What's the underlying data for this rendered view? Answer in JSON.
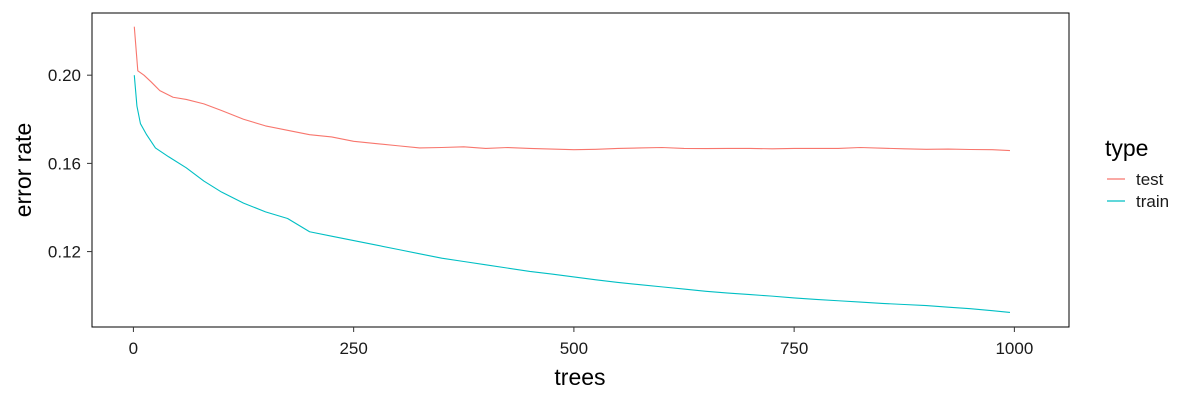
{
  "chart_data": {
    "type": "line",
    "xlabel": "trees",
    "ylabel": "error rate",
    "xlim": [
      -47,
      1062
    ],
    "ylim": [
      0.0858,
      0.2282
    ],
    "x_ticks": [
      0,
      250,
      500,
      750,
      1000
    ],
    "x_tick_labels": [
      "0",
      "250",
      "500",
      "750",
      "1000"
    ],
    "y_ticks": [
      0.12,
      0.16,
      0.2
    ],
    "y_tick_labels": [
      "0.12",
      "0.16",
      "0.20"
    ],
    "grid": false,
    "legend": {
      "title": "type",
      "placement": "right"
    },
    "series": [
      {
        "name": "test",
        "color": "#F8766D",
        "points": [
          [
            1,
            0.222
          ],
          [
            5,
            0.202
          ],
          [
            12,
            0.2
          ],
          [
            20,
            0.197
          ],
          [
            30,
            0.193
          ],
          [
            45,
            0.19
          ],
          [
            60,
            0.189
          ],
          [
            80,
            0.187
          ],
          [
            100,
            0.184
          ],
          [
            125,
            0.18
          ],
          [
            150,
            0.177
          ],
          [
            175,
            0.175
          ],
          [
            200,
            0.173
          ],
          [
            225,
            0.172
          ],
          [
            250,
            0.17
          ],
          [
            275,
            0.169
          ],
          [
            300,
            0.168
          ],
          [
            325,
            0.167
          ],
          [
            350,
            0.1672
          ],
          [
            375,
            0.1675
          ],
          [
            400,
            0.1668
          ],
          [
            425,
            0.1672
          ],
          [
            450,
            0.1668
          ],
          [
            475,
            0.1665
          ],
          [
            500,
            0.1662
          ],
          [
            525,
            0.1664
          ],
          [
            550,
            0.1668
          ],
          [
            575,
            0.167
          ],
          [
            600,
            0.1672
          ],
          [
            625,
            0.1668
          ],
          [
            650,
            0.1667
          ],
          [
            675,
            0.1668
          ],
          [
            700,
            0.1668
          ],
          [
            725,
            0.1666
          ],
          [
            750,
            0.1668
          ],
          [
            775,
            0.1668
          ],
          [
            800,
            0.1668
          ],
          [
            825,
            0.1672
          ],
          [
            850,
            0.1669
          ],
          [
            875,
            0.1666
          ],
          [
            900,
            0.1664
          ],
          [
            925,
            0.1665
          ],
          [
            950,
            0.1663
          ],
          [
            975,
            0.1662
          ],
          [
            995,
            0.1658
          ]
        ]
      },
      {
        "name": "train",
        "color": "#00BFC4",
        "points": [
          [
            1,
            0.2
          ],
          [
            4,
            0.186
          ],
          [
            8,
            0.178
          ],
          [
            15,
            0.173
          ],
          [
            25,
            0.167
          ],
          [
            40,
            0.163
          ],
          [
            60,
            0.158
          ],
          [
            80,
            0.152
          ],
          [
            100,
            0.147
          ],
          [
            125,
            0.142
          ],
          [
            150,
            0.138
          ],
          [
            175,
            0.135
          ],
          [
            200,
            0.129
          ],
          [
            225,
            0.127
          ],
          [
            250,
            0.125
          ],
          [
            275,
            0.123
          ],
          [
            300,
            0.121
          ],
          [
            325,
            0.119
          ],
          [
            350,
            0.117
          ],
          [
            375,
            0.1155
          ],
          [
            400,
            0.114
          ],
          [
            425,
            0.1125
          ],
          [
            450,
            0.111
          ],
          [
            475,
            0.1098
          ],
          [
            500,
            0.1085
          ],
          [
            525,
            0.1072
          ],
          [
            550,
            0.106
          ],
          [
            575,
            0.105
          ],
          [
            600,
            0.104
          ],
          [
            625,
            0.103
          ],
          [
            650,
            0.102
          ],
          [
            675,
            0.1012
          ],
          [
            700,
            0.1005
          ],
          [
            725,
            0.0998
          ],
          [
            750,
            0.099
          ],
          [
            775,
            0.0983
          ],
          [
            800,
            0.0977
          ],
          [
            825,
            0.0971
          ],
          [
            850,
            0.0965
          ],
          [
            875,
            0.096
          ],
          [
            900,
            0.0955
          ],
          [
            925,
            0.0948
          ],
          [
            950,
            0.0941
          ],
          [
            975,
            0.0932
          ],
          [
            995,
            0.0924
          ]
        ]
      }
    ]
  }
}
